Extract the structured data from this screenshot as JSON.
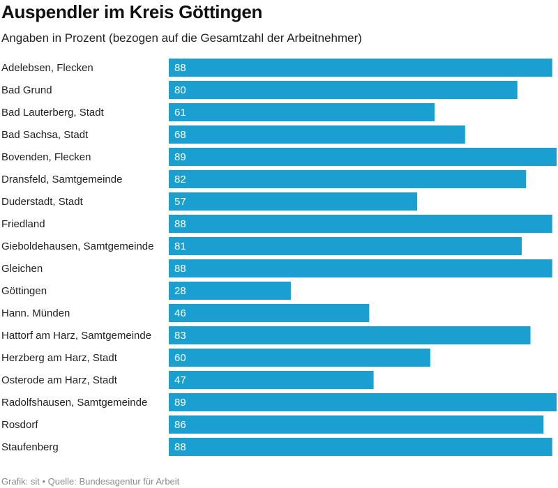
{
  "header": {
    "title": "Auspendler im Kreis Göttingen",
    "subtitle": "Angaben in Prozent (bezogen auf die Gesamtzahl der Arbeitnehmer)"
  },
  "footer": {
    "source": "Grafik: sit • Quelle: Bundesagentur für Arbeit"
  },
  "colors": {
    "bar": "#1a9fd1"
  },
  "chart_data": {
    "type": "bar",
    "orientation": "horizontal",
    "title": "Auspendler im Kreis Göttingen",
    "subtitle": "Angaben in Prozent (bezogen auf die Gesamtzahl der Arbeitnehmer)",
    "categories": [
      "Adelebsen, Flecken",
      "Bad Grund",
      "Bad Lauterberg, Stadt",
      "Bad Sachsa, Stadt",
      "Bovenden, Flecken",
      "Dransfeld, Samtgemeinde",
      "Duderstadt, Stadt",
      "Friedland",
      "Gieboldehausen, Samtgemeinde",
      "Gleichen",
      "Göttingen",
      "Hann. Münden",
      "Hattorf am Harz, Samtgemeinde",
      "Herzberg am Harz, Stadt",
      "Osterode am Harz, Stadt",
      "Radolfshausen, Samtgemeinde",
      "Rosdorf",
      "Staufenberg"
    ],
    "values": [
      88,
      80,
      61,
      68,
      89,
      82,
      57,
      88,
      81,
      88,
      28,
      46,
      83,
      60,
      47,
      89,
      86,
      88
    ],
    "xlim": [
      0,
      89
    ],
    "data_labels": true,
    "grid": false,
    "legend": "none"
  }
}
